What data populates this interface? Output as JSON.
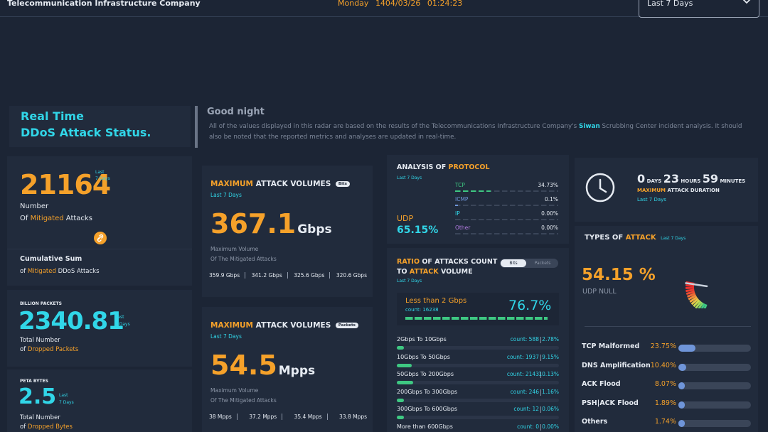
{
  "header": {
    "company": "Telecommunication Infrastructure Company",
    "day": "Monday",
    "date": "1404/03/26",
    "time": "01:24:23",
    "range": "Last 7 Days"
  },
  "intro": {
    "title_line1": "Real Time",
    "title_line2": "DDoS Attack Status.",
    "greeting": "Good night",
    "desc_a": "All of the values displayed in this radar are based on the results of the Telecommunications Infrastructure Company's",
    "desc_brand": "Siwan",
    "desc_b": "Scrubbing Center incident analysis. It should also be noted that the reported metrics and analyses are updated in real-time."
  },
  "mitigated": {
    "value": "21164",
    "tag1": "Last",
    "tag2": "7 Days",
    "label1": "Number",
    "label_of": "Of",
    "label_hl": "Mitigated",
    "label_end": "Attacks",
    "cum_title": "Cumulative Sum",
    "cum_of": "of",
    "cum_hl": "Mitigated",
    "cum_end": "DDoS Attacks"
  },
  "packets": {
    "caption": "BILLION PACKETS",
    "value": "2340.81",
    "tag1": "Last",
    "tag2": "7 Days",
    "label1": "Total Number",
    "label_of": "of",
    "label_hl": "Dropped Packets"
  },
  "bytes": {
    "caption": "PETA BYTES",
    "value": "2.5",
    "tag1": "Last",
    "tag2": "7 Days",
    "label1": "Total Number",
    "label_of": "of",
    "label_hl": "Dropped Bytes"
  },
  "vol_bits": {
    "title_hl": "MAXIMUM",
    "title_rest": "ATTACK VOLUMES",
    "pill": "Bits",
    "days": "Last 7 Days",
    "value": "367.1",
    "unit": "Gbps",
    "label1": "Maximum Volume",
    "label2": "Of The Mitigated Attacks",
    "stats": [
      "359.9 Gbps",
      "341.2 Gbps",
      "325.6 Gbps",
      "320.6 Gbps"
    ]
  },
  "vol_packets": {
    "title_hl": "MAXIMUM",
    "title_rest": "ATTACK VOLUMES",
    "pill": "Packets",
    "days": "Last 7 Days",
    "value": "54.5",
    "unit": "Mpps",
    "label1": "Maximum Volume",
    "label2": "Of The Mitigated Attacks",
    "stats": [
      "38 Mpps",
      "37.2 Mpps",
      "35.4 Mpps",
      "33.8 Mpps"
    ]
  },
  "protocol": {
    "title_a": "ANALYSIS OF",
    "title_hl": "PROTOCOL",
    "days": "Last 7 Days",
    "main_name": "UDP",
    "main_pct": "65.15%",
    "rows": [
      {
        "name": "TCP",
        "pct": "34.73%",
        "value": 0.3473,
        "color": "#3ec882"
      },
      {
        "name": "ICMP",
        "pct": "0.1%",
        "value": 0.001,
        "color": "#6f95d9"
      },
      {
        "name": "IP",
        "pct": "0.00%",
        "value": 0,
        "color": "#31d6e8"
      },
      {
        "name": "Other",
        "pct": "0.00%",
        "value": 0,
        "color": "#b27be0"
      }
    ]
  },
  "ratio": {
    "title_hl1": "RATIO",
    "title_rest1": "OF ATTACKS COUNT",
    "title_to": "TO",
    "title_hl2": "ATTACK",
    "title_rest2": "VOLUME",
    "days": "Last 7 Days",
    "toggle_a": "Bits",
    "toggle_b": "Packets",
    "top_label": "Less than 2 Gbps",
    "top_count": "count: 16238",
    "top_pct": "76.7%",
    "rows": [
      {
        "name": "2Gbps To 10Gbps",
        "count": "count: 588",
        "pct": "2.78%",
        "value": 0.0278
      },
      {
        "name": "10Gbps To 50Gbps",
        "count": "count: 1937",
        "pct": "9.15%",
        "value": 0.0915
      },
      {
        "name": "50Gbps To 200Gbps",
        "count": "count: 2143",
        "pct": "10.13%",
        "value": 0.1013
      },
      {
        "name": "200Gbps To 300Gbps",
        "count": "count: 246",
        "pct": "1.16%",
        "value": 0.0116
      },
      {
        "name": "300Gbps To 600Gbps",
        "count": "count: 12",
        "pct": "0.06%",
        "value": 0.0006
      },
      {
        "name": "More than 600Gbps",
        "count": "count: 0",
        "pct": "0.00%",
        "value": 0
      }
    ]
  },
  "duration": {
    "days_num": "0",
    "days_lbl": "DAYS",
    "hours_num": "23",
    "hours_lbl": "HOURS",
    "mins_num": "59",
    "mins_lbl": "MINUTES",
    "label_hl": "MAXIMUM",
    "label_rest": "ATTACK DURATION",
    "days": "Last 7 Days"
  },
  "types": {
    "title_a": "TYPES OF",
    "title_hl": "ATTACK",
    "days": "Last 7 Days",
    "main_pct": "54.15 %",
    "main_name": "UDP NULL",
    "gauge_value": 0.5415,
    "rows": [
      {
        "name": "TCP Malformed",
        "pct": "23.75%",
        "value": 0.2375
      },
      {
        "name": "DNS Amplification",
        "pct": "10.40%",
        "value": 0.104
      },
      {
        "name": "ACK Flood",
        "pct": "8.07%",
        "value": 0.0807
      },
      {
        "name": "PSH|ACK Flood",
        "pct": "1.89%",
        "value": 0.0189
      },
      {
        "name": "Others",
        "pct": "1.74%",
        "value": 0.0174
      }
    ]
  }
}
